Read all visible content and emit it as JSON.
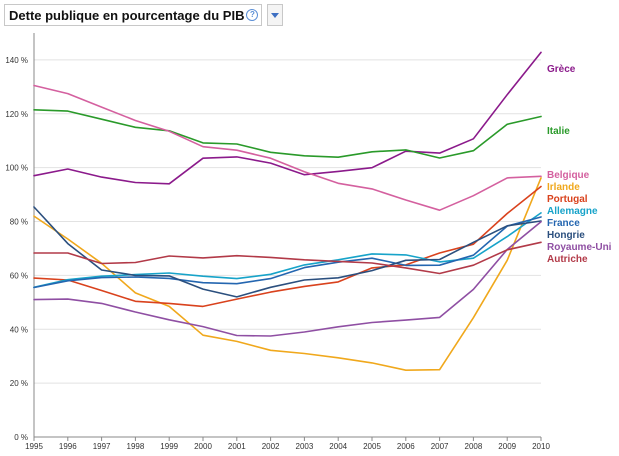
{
  "title": "Dette publique en pourcentage du PIB",
  "info_icon": "info-icon",
  "dropdown_icon": "chevron-down-icon",
  "chart_data": {
    "type": "line",
    "title": "Dette publique en pourcentage du PIB",
    "x": [
      1995,
      1996,
      1997,
      1998,
      1999,
      2000,
      2001,
      2002,
      2003,
      2004,
      2005,
      2006,
      2007,
      2008,
      2009,
      2010
    ],
    "ylim": [
      0,
      150
    ],
    "yticks": [
      0,
      20,
      40,
      60,
      80,
      100,
      120,
      140
    ],
    "ytick_labels": [
      "0 %",
      "20 %",
      "40 %",
      "60 %",
      "80 %",
      "100 %",
      "120 %",
      "140 %"
    ],
    "grid": true,
    "legend_placement": "right",
    "series": [
      {
        "name": "Grèce",
        "color": "#8b1a8b",
        "values": [
          97,
          99.5,
          96.5,
          94.5,
          94,
          103.5,
          104,
          101.7,
          97.4,
          98.6,
          100,
          106.1,
          105.4,
          110.7,
          127.1,
          142.8
        ]
      },
      {
        "name": "Italie",
        "color": "#2a9a2a",
        "values": [
          121.5,
          121,
          118,
          115,
          113.7,
          109.2,
          108.8,
          105.7,
          104.4,
          103.9,
          105.9,
          106.6,
          103.6,
          106.3,
          116.1,
          119
        ]
      },
      {
        "name": "Belgique",
        "color": "#d4609f",
        "values": [
          130.5,
          127.5,
          122.5,
          117.5,
          113.5,
          107.8,
          106.5,
          103.5,
          98.5,
          94.2,
          92.1,
          88,
          84.2,
          89.6,
          96.2,
          96.8
        ]
      },
      {
        "name": "Irlande",
        "color": "#f0a81c",
        "values": [
          82,
          73.5,
          64.5,
          53.5,
          48.5,
          37.8,
          35.5,
          32.2,
          31,
          29.4,
          27.5,
          24.8,
          25,
          44.3,
          65.6,
          96.2
        ]
      },
      {
        "name": "Portugal",
        "color": "#d9421d",
        "values": [
          59,
          58.3,
          54.4,
          50.4,
          49.6,
          48.5,
          51.2,
          53.8,
          55.9,
          57.6,
          62.8,
          63.9,
          68.3,
          71.6,
          83,
          93
        ]
      },
      {
        "name": "Allemagne",
        "color": "#17a3c9",
        "values": [
          55.6,
          58.4,
          59.7,
          60.3,
          60.9,
          59.7,
          58.8,
          60.4,
          63.9,
          65.8,
          68,
          67.6,
          65,
          66.4,
          74.4,
          83.2
        ]
      },
      {
        "name": "France",
        "color": "#2466b0",
        "values": [
          55.5,
          58,
          59.2,
          59.4,
          58.9,
          57.3,
          56.9,
          58.8,
          62.9,
          64.9,
          66.4,
          63.7,
          63.8,
          67.5,
          78.3,
          81.7
        ]
      },
      {
        "name": "Hongrie",
        "color": "#2b4f7e",
        "values": [
          85.4,
          71.8,
          62,
          60,
          59.8,
          54.9,
          52,
          55.6,
          58.3,
          59.1,
          61.8,
          65.6,
          65.9,
          72.3,
          78.4,
          80.2
        ]
      },
      {
        "name": "Royaume-Uni",
        "color": "#8f4fa3",
        "values": [
          51,
          51.2,
          49.6,
          46.4,
          43.5,
          41,
          37.7,
          37.5,
          39,
          40.9,
          42.5,
          43.4,
          44.4,
          54.8,
          69.6,
          79.9
        ]
      },
      {
        "name": "Autriche",
        "color": "#b23a48",
        "values": [
          68.3,
          68.3,
          64.4,
          64.8,
          67.2,
          66.5,
          67.3,
          66.7,
          65.8,
          65.2,
          64.6,
          62.8,
          60.7,
          63.8,
          69.5,
          72.3
        ]
      }
    ]
  }
}
